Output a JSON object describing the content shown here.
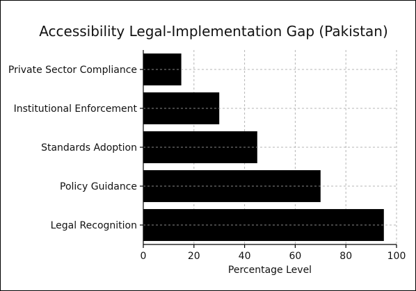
{
  "chart_data": {
    "type": "bar",
    "orientation": "horizontal",
    "title": "Accessibility Legal-Implementation Gap (Pakistan)",
    "xlabel": "Percentage Level",
    "ylabel": "",
    "categories": [
      "Legal Recognition",
      "Policy Guidance",
      "Standards Adoption",
      "Institutional Enforcement",
      "Private Sector Compliance"
    ],
    "values": [
      95,
      70,
      45,
      30,
      15
    ],
    "xlim": [
      0,
      100
    ],
    "xticks": [
      0,
      20,
      40,
      60,
      80,
      100
    ],
    "grid": true,
    "bar_color": "#000000"
  }
}
